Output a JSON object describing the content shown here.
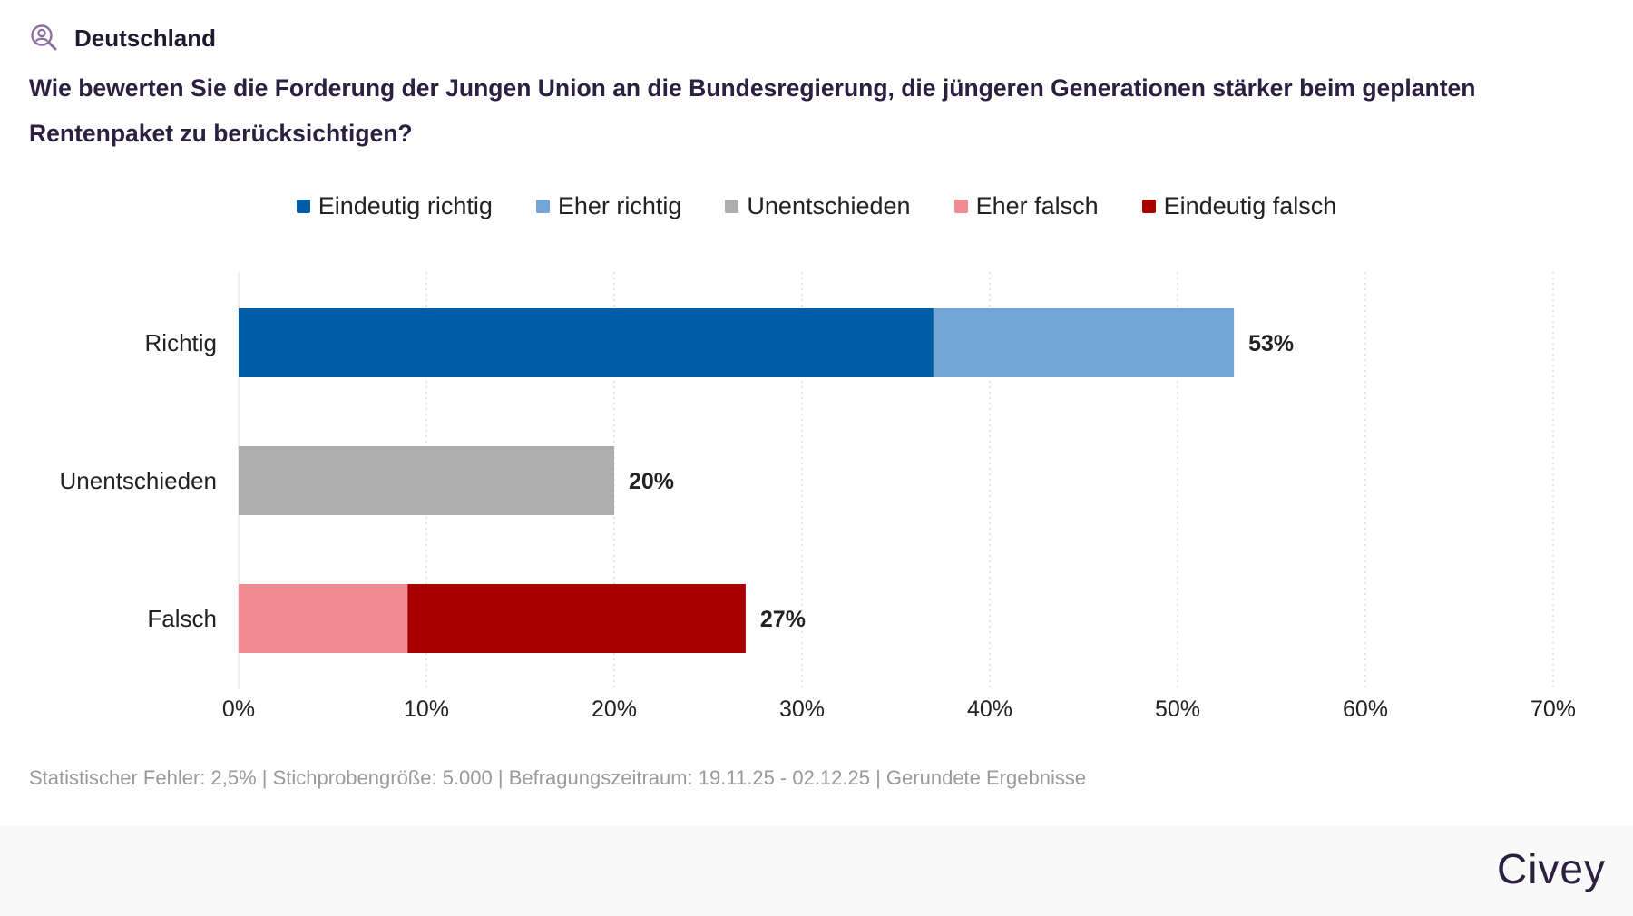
{
  "header": {
    "region": "Deutschland",
    "question": "Wie bewerten Sie die Forderung der Jungen Union an die Bundesregierung, die jüngeren Generationen stärker beim geplanten Rentenpaket zu berücksichtigen?"
  },
  "icons": {
    "region_icon": "search-person-icon"
  },
  "colors": {
    "eindeutig_richtig": "#005ca5",
    "eher_richtig": "#72a4d8",
    "unentschieden": "#adadae",
    "eher_falsch": "#f08b92",
    "eindeutig_falsch": "#a80000",
    "accent": "#8a6f9f"
  },
  "chart_data": {
    "type": "bar",
    "orientation": "horizontal",
    "stacked": true,
    "categories": [
      "Richtig",
      "Unentschieden",
      "Falsch"
    ],
    "series": [
      {
        "name": "Eindeutig richtig",
        "color": "#005ca5",
        "values": [
          37,
          0,
          0
        ]
      },
      {
        "name": "Eher richtig",
        "color": "#72a4d8",
        "values": [
          16,
          0,
          0
        ]
      },
      {
        "name": "Unentschieden",
        "color": "#adadae",
        "values": [
          0,
          20,
          0
        ]
      },
      {
        "name": "Eher falsch",
        "color": "#f08b92",
        "values": [
          0,
          0,
          9
        ]
      },
      {
        "name": "Eindeutig falsch",
        "color": "#a80000",
        "values": [
          0,
          0,
          18
        ]
      }
    ],
    "segment_order": [
      [
        0,
        1
      ],
      [
        2
      ],
      [
        3,
        4
      ]
    ],
    "totals": [
      "53%",
      "20%",
      "27%"
    ],
    "xlim": [
      0,
      70
    ],
    "xticks": [
      "0%",
      "10%",
      "20%",
      "30%",
      "40%",
      "50%",
      "60%",
      "70%"
    ],
    "grid": "vertical-dotted",
    "legend_position": "top-center"
  },
  "footnote": "Statistischer Fehler: 2,5% | Stichprobengröße: 5.000 | Befragungszeitraum: 19.11.25 - 02.12.25 | Gerundete Ergebnisse",
  "brand": "Civey"
}
